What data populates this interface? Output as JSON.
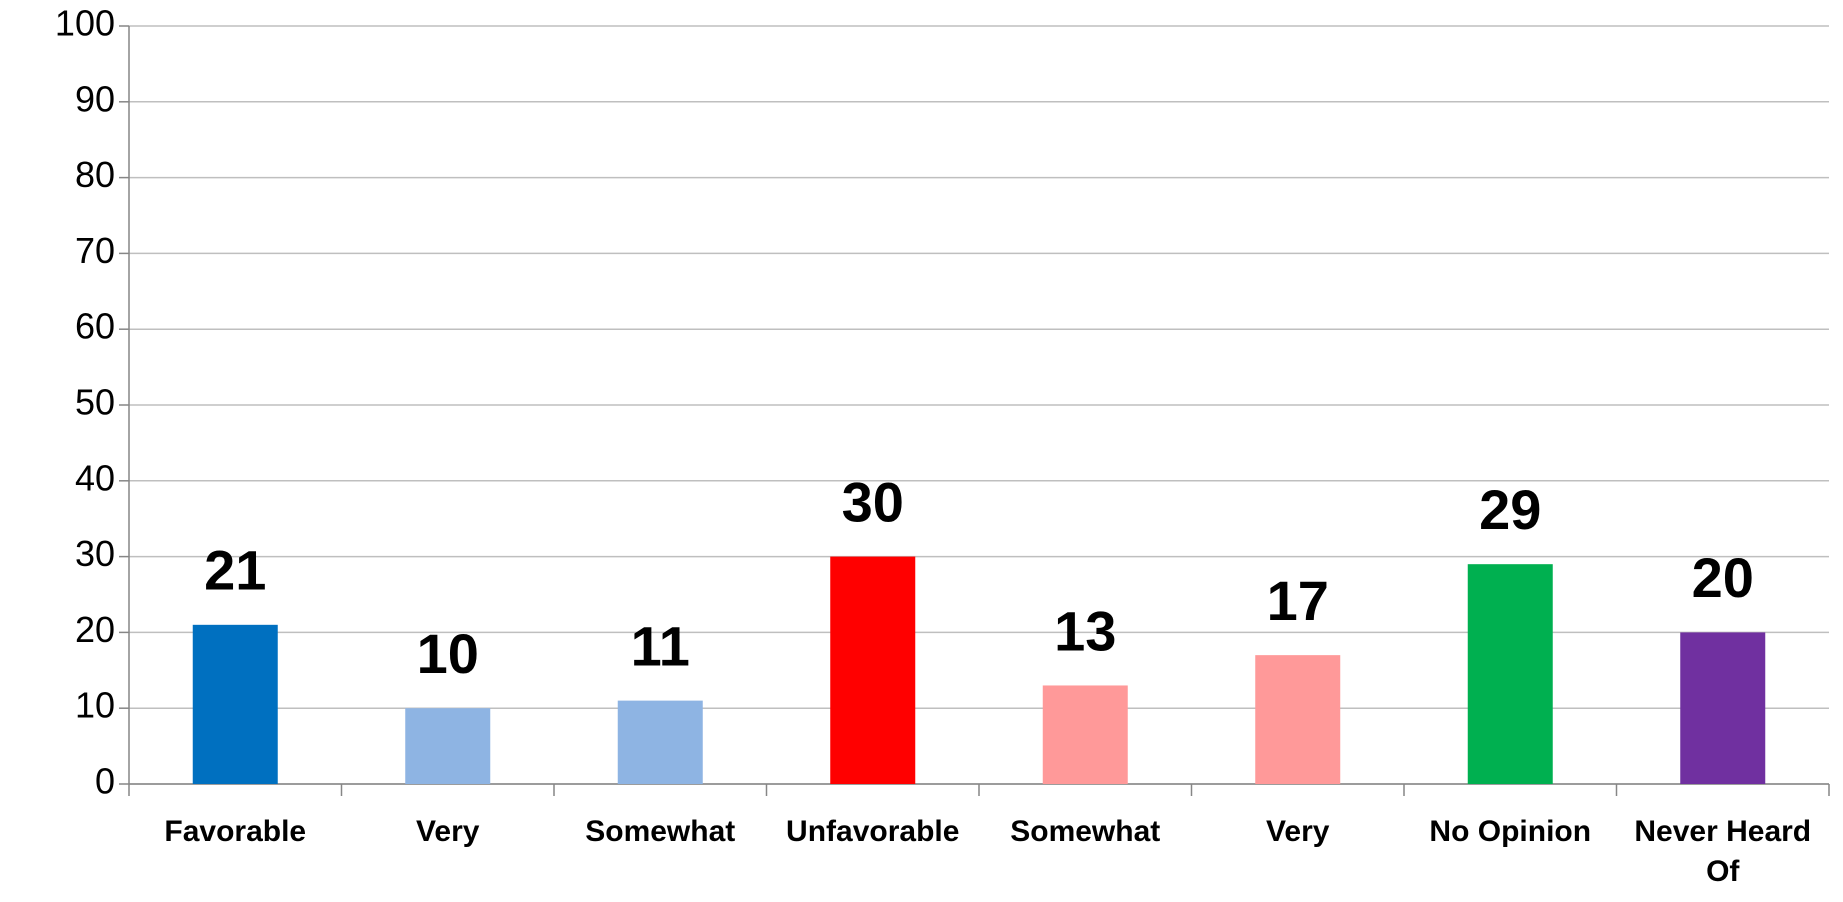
{
  "chart_data": {
    "type": "bar",
    "categories": [
      "Favorable",
      "Very",
      "Somewhat",
      "Unfavorable",
      "Somewhat",
      "Very",
      "No Opinion",
      "Never Heard Of"
    ],
    "values": [
      21,
      10,
      11,
      30,
      13,
      17,
      29,
      20
    ],
    "colors": [
      "#0070c0",
      "#8eb4e3",
      "#8eb4e3",
      "#ff0000",
      "#ff9999",
      "#ff9999",
      "#00b050",
      "#7030a0"
    ],
    "ylim": [
      0,
      100
    ],
    "yticks": [
      0,
      10,
      20,
      30,
      40,
      50,
      60,
      70,
      80,
      90,
      100
    ],
    "grid": true
  }
}
